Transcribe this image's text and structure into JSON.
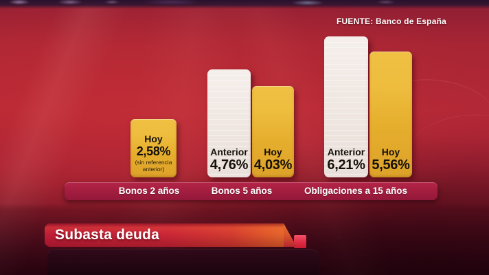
{
  "source_label": "FUENTE: Banco de España",
  "banner": {
    "title": "Subasta deuda"
  },
  "colors": {
    "gold_bar": "#e5ad2c",
    "white_bar": "#efe6e1",
    "band": "#a51e40",
    "banner_red": "#cb2737",
    "banner_orange": "#e4662b",
    "notch_pink": "#f25167",
    "background_red": "#b32836",
    "bar_text": "#14100a",
    "light_text": "#ffffff"
  },
  "chart_data": {
    "type": "bar",
    "unit": "%",
    "legend_position": "none",
    "grid": false,
    "ylim": [
      0,
      6.5
    ],
    "categories": [
      "Bonos 2 años",
      "Bonos 5 años",
      "Obligaciones a 15 años"
    ],
    "groups": [
      {
        "category": "Bonos 2 años",
        "bars": [
          {
            "label": "Hoy",
            "value": 2.58,
            "display": "2,58%",
            "color": "gold",
            "note": "(sin referencia anterior)",
            "note_lines": [
              "(sin referencia",
              "anterior)"
            ]
          }
        ]
      },
      {
        "category": "Bonos 5 años",
        "bars": [
          {
            "label": "Anterior",
            "value": 4.76,
            "display": "4,76%",
            "color": "white"
          },
          {
            "label": "Hoy",
            "value": 4.03,
            "display": "4,03%",
            "color": "gold"
          }
        ]
      },
      {
        "category": "Obligaciones a 15 años",
        "bars": [
          {
            "label": "Anterior",
            "value": 6.21,
            "display": "6,21%",
            "color": "white"
          },
          {
            "label": "Hoy",
            "value": 5.56,
            "display": "5,56%",
            "color": "gold"
          }
        ]
      }
    ]
  }
}
